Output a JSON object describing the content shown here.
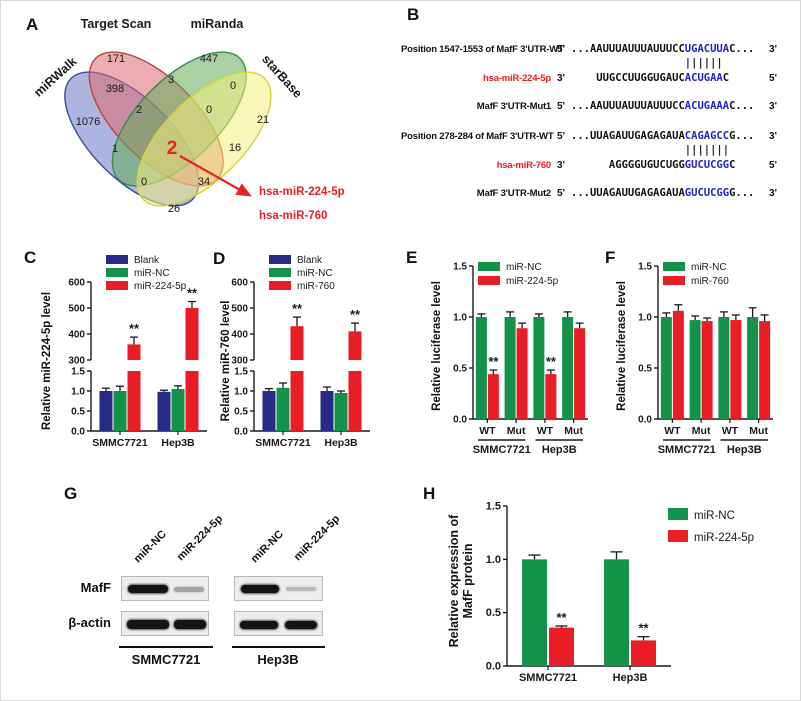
{
  "panel_labels": {
    "a": "A",
    "b": "B",
    "c": "C",
    "d": "D",
    "e": "E",
    "f": "F",
    "g": "G",
    "h": "H"
  },
  "venn": {
    "set_labels": {
      "mirwalk": "miRWalk",
      "targetscan": "Target Scan",
      "miranda": "miRanda",
      "starbase": "starBase"
    },
    "colors": {
      "mirwalk": "#6b76c6",
      "targetscan": "#dd6a6f",
      "miranda": "#62ab59",
      "starbase": "#f2ee7e"
    },
    "regions": [
      {
        "name": "miRWalk-only",
        "value": "1076"
      },
      {
        "name": "TargetScan-only",
        "value": "171"
      },
      {
        "name": "miRanda-only",
        "value": "447"
      },
      {
        "name": "starBase-only",
        "value": "21"
      },
      {
        "name": "miRWalk-TargetScan",
        "value": "398"
      },
      {
        "name": "TargetScan-miRanda",
        "value": "3"
      },
      {
        "name": "miRanda-starBase",
        "value": "0"
      },
      {
        "name": "miRWalk-TargetScan-miRanda",
        "value": "2"
      },
      {
        "name": "TargetScan-miRanda-starBase",
        "value": "0"
      },
      {
        "name": "miRWalk-miRanda",
        "value": "1"
      },
      {
        "name": "all-four-center",
        "value": "2"
      },
      {
        "name": "TargetScan-starBase",
        "value": "16"
      },
      {
        "name": "miRWalk-miRanda-starBase",
        "value": "0"
      },
      {
        "name": "miRWalk-TargetScan-starBase",
        "value": "34"
      },
      {
        "name": "miRWalk-starBase",
        "value": "26"
      }
    ],
    "highlight_line1": "hsa-miR-224-5p",
    "highlight_line2": "hsa-miR-760"
  },
  "panel_b": {
    "rows": [
      {
        "label": "Position 1547-1553 of MafF 3'UTR-WT",
        "lm": "5'",
        "pre": "...AAUUUAUUUAUUUCC",
        "match": "UGACUUA",
        "post": "C...",
        "rm": "3'"
      },
      {
        "pad": "...AAUUUAUUUAUUUCC",
        "bars": "||||||"
      },
      {
        "label": "hsa-miR-224-5p",
        "lm": "3'",
        "pre": "    UUGCCUUGGUGAUC",
        "match": "ACUGAA",
        "post": "C",
        "rm": "5'"
      },
      {
        "label": "MafF 3'UTR-Mut1",
        "lm": "5'",
        "pre": "...AAUUUAUUUAUUUCC",
        "match": "ACUGAAA",
        "post": "C...",
        "rm": "3'"
      },
      {
        "label": "Position 278-284 of MafF 3'UTR-WT",
        "lm": "5'",
        "pre": "...UUAGAUUGAGAGAUA",
        "match": "CAGAGCC",
        "post": "G...",
        "rm": "3'"
      },
      {
        "pad": "...UUAGAUUGAGAGAUA",
        "bars": "|||||||"
      },
      {
        "label": "hsa-miR-760",
        "lm": "3'",
        "pre": "      AGGGGUGUCUGG",
        "match": "GUCUCGG",
        "post": "C",
        "rm": "5'"
      },
      {
        "label": "MafF 3'UTR-Mut2",
        "lm": "5'",
        "pre": "...UUAGAUUGAGAGAUA",
        "match": "GUCUCGG",
        "post": "G...",
        "rm": "3'"
      }
    ]
  },
  "panel_g": {
    "row_labels": [
      "MafF",
      "β-actin"
    ],
    "lane_labels": [
      "miR-NC",
      "miR-224-5p",
      "miR-NC",
      "miR-224-5p"
    ],
    "group_labels": [
      "SMMC7721",
      "Hep3B"
    ]
  },
  "chart_data": [
    {
      "id": "C",
      "type": "bar",
      "ylabel": "Relative miR-224-5p level",
      "broken_axis": true,
      "lower": {
        "range": [
          0,
          1.5
        ],
        "ticks": [
          "0.0",
          "0.5",
          "1.0",
          "1.5"
        ]
      },
      "upper": {
        "range": [
          300,
          600
        ],
        "ticks": [
          "300",
          "400",
          "500",
          "600"
        ]
      },
      "categories": [
        "SMMC7721",
        "Hep3B"
      ],
      "series": [
        {
          "name": "Blank",
          "color": "#252b87",
          "values": [
            1.0,
            0.98
          ],
          "errors": [
            0.07,
            0.04
          ],
          "sig": [
            "",
            ""
          ]
        },
        {
          "name": "miR-NC",
          "color": "#13934a",
          "values": [
            1.0,
            1.05
          ],
          "errors": [
            0.12,
            0.08
          ],
          "sig": [
            "",
            ""
          ]
        },
        {
          "name": "miR-224-5p",
          "color": "#e81d25",
          "values": [
            360,
            500
          ],
          "errors": [
            28,
            25
          ],
          "sig": [
            "**",
            "**"
          ]
        }
      ],
      "legend_position": "top-inside"
    },
    {
      "id": "D",
      "type": "bar",
      "ylabel": "Relative miR-760 level",
      "broken_axis": true,
      "lower": {
        "range": [
          0,
          1.5
        ],
        "ticks": [
          "0.0",
          "0.5",
          "1.0",
          "1.5"
        ]
      },
      "upper": {
        "range": [
          300,
          600
        ],
        "ticks": [
          "300",
          "400",
          "500",
          "600"
        ]
      },
      "categories": [
        "SMMC7721",
        "Hep3B"
      ],
      "series": [
        {
          "name": "Blank",
          "color": "#252b87",
          "values": [
            1.0,
            1.0
          ],
          "errors": [
            0.06,
            0.1
          ],
          "sig": [
            "",
            ""
          ]
        },
        {
          "name": "miR-NC",
          "color": "#13934a",
          "values": [
            1.08,
            0.95
          ],
          "errors": [
            0.12,
            0.05
          ],
          "sig": [
            "",
            ""
          ]
        },
        {
          "name": "miR-760",
          "color": "#e81d25",
          "values": [
            430,
            410
          ],
          "errors": [
            35,
            32
          ],
          "sig": [
            "**",
            "**"
          ]
        }
      ],
      "legend_position": "top-inside"
    },
    {
      "id": "E",
      "type": "bar",
      "ylabel": "Relative luciferase level",
      "axis": {
        "range": [
          0,
          1.5
        ],
        "ticks": [
          "0.0",
          "0.5",
          "1.0",
          "1.5"
        ]
      },
      "categories": [
        "WT",
        "Mut",
        "WT",
        "Mut"
      ],
      "groups": [
        {
          "label": "SMMC7721",
          "span": [
            0,
            1
          ]
        },
        {
          "label": "Hep3B",
          "span": [
            2,
            3
          ]
        }
      ],
      "series": [
        {
          "name": "miR-NC",
          "color": "#13934a",
          "values": [
            1.0,
            1.0,
            1.0,
            1.0
          ],
          "errors": [
            0.03,
            0.05,
            0.03,
            0.05
          ],
          "sig": [
            "",
            "",
            "",
            ""
          ]
        },
        {
          "name": "miR-224-5p",
          "color": "#e81d25",
          "values": [
            0.44,
            0.89,
            0.44,
            0.89
          ],
          "errors": [
            0.04,
            0.05,
            0.04,
            0.05
          ],
          "sig": [
            "**",
            "",
            "**",
            ""
          ]
        }
      ],
      "legend_position": "top-inside"
    },
    {
      "id": "F",
      "type": "bar",
      "ylabel": "Relative luciferase level",
      "axis": {
        "range": [
          0,
          1.5
        ],
        "ticks": [
          "0.0",
          "0.5",
          "1.0",
          "1.5"
        ]
      },
      "categories": [
        "WT",
        "Mut",
        "WT",
        "Mut"
      ],
      "groups": [
        {
          "label": "SMMC7721",
          "span": [
            0,
            1
          ]
        },
        {
          "label": "Hep3B",
          "span": [
            2,
            3
          ]
        }
      ],
      "series": [
        {
          "name": "miR-NC",
          "color": "#13934a",
          "values": [
            1.0,
            0.97,
            1.0,
            1.0
          ],
          "errors": [
            0.04,
            0.04,
            0.05,
            0.09
          ],
          "sig": [
            "",
            "",
            "",
            ""
          ]
        },
        {
          "name": "miR-760",
          "color": "#e81d25",
          "values": [
            1.06,
            0.96,
            0.97,
            0.96
          ],
          "errors": [
            0.06,
            0.03,
            0.05,
            0.06
          ],
          "sig": [
            "",
            "",
            "",
            ""
          ]
        }
      ],
      "legend_position": "top-inside"
    },
    {
      "id": "H",
      "type": "bar",
      "ylabel": "Relative expression of",
      "ylabel2": "MafF protein",
      "axis": {
        "range": [
          0,
          1.5
        ],
        "ticks": [
          "0.0",
          "0.5",
          "1.0",
          "1.5"
        ]
      },
      "categories": [
        "SMMC7721",
        "Hep3B"
      ],
      "series": [
        {
          "name": "miR-NC",
          "color": "#13934a",
          "values": [
            1.0,
            1.0
          ],
          "errors": [
            0.04,
            0.07
          ],
          "sig": [
            "",
            ""
          ]
        },
        {
          "name": "miR-224-5p",
          "color": "#e81d25",
          "values": [
            0.36,
            0.24
          ],
          "errors": [
            0.015,
            0.035
          ],
          "sig": [
            "**",
            "**"
          ]
        }
      ],
      "legend_position": "right-outside"
    }
  ]
}
